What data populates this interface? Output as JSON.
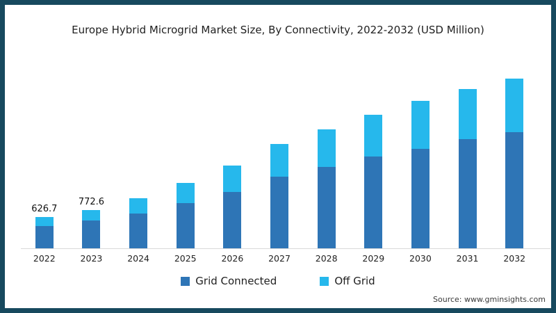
{
  "title": "Europe Hybrid Microgrid Market Size, By Connectivity, 2022-2032 (USD Million)",
  "source": {
    "text": "Source: www.gminsights.com"
  },
  "legend": {
    "items": [
      {
        "label": "Grid Connected",
        "color": "#2e75b6"
      },
      {
        "label": "Off Grid",
        "color": "#26b8ec"
      }
    ]
  },
  "frame": {
    "border_color": "#17495e",
    "background": "#ffffff",
    "baseline_color": "#d9d9d9"
  },
  "chart_data": {
    "type": "bar",
    "stacked": true,
    "title": "Europe Hybrid Microgrid Market Size, By Connectivity, 2022-2032 (USD Million)",
    "unit": "USD Million",
    "categories": [
      "2022",
      "2023",
      "2024",
      "2025",
      "2026",
      "2027",
      "2028",
      "2029",
      "2030",
      "2031",
      "2032"
    ],
    "series": [
      {
        "name": "Grid Connected",
        "color": "#2e75b6",
        "values": [
          440,
          555,
          700,
          900,
          1130,
          1430,
          1630,
          1840,
          2000,
          2185,
          2335
        ]
      },
      {
        "name": "Off Grid",
        "color": "#26b8ec",
        "values": [
          186.7,
          217.6,
          305,
          410,
          530,
          660,
          760,
          840,
          960,
          1015,
          1070
        ]
      }
    ],
    "totals": [
      626.7,
      772.6,
      1005,
      1310,
      1660,
      2090,
      2390,
      2680,
      2960,
      3200,
      3405
    ],
    "data_labels": [
      "626.7",
      "772.6",
      "",
      "",
      "",
      "",
      "",
      "",
      "",
      "",
      ""
    ],
    "ylim": [
      0,
      3500
    ],
    "grid": false,
    "y_axis_visible": false,
    "legend_position": "bottom"
  }
}
